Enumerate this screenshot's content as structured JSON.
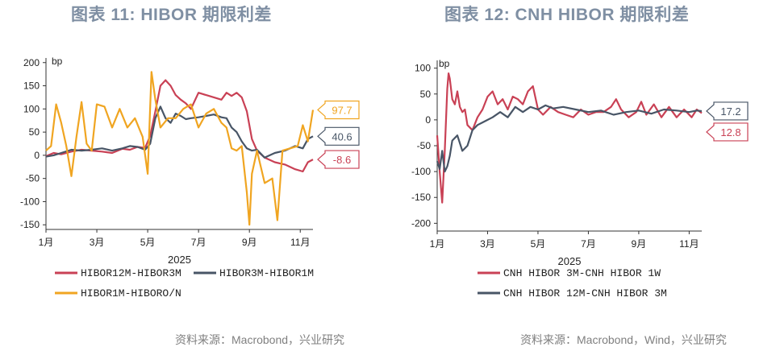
{
  "charts": [
    {
      "title": "图表 11: HIBOR 期限利差",
      "source": "资料来源：Macrobond，兴业研究",
      "unit": "bp",
      "xlabel": "2025",
      "x_ticks": [
        "1月",
        "3月",
        "5月",
        "7月",
        "9月",
        "11月"
      ],
      "y_ticks": [
        "200",
        "150",
        "100",
        "50",
        "0",
        "-50",
        "-100",
        "-150"
      ],
      "legend": [
        "HIBOR12M-HIBOR3M",
        "HIBOR3M-HIBOR1M",
        "HIBOR1M-HIBORO/N"
      ],
      "end_labels": [
        "97.7",
        "40.6",
        "-8.6"
      ]
    },
    {
      "title": "图表 12: CNH HIBOR 期限利差",
      "source": "资料来源：Macrobond，Wind，兴业研究",
      "unit": "bp",
      "xlabel": "2025",
      "x_ticks": [
        "1月",
        "3月",
        "5月",
        "7月",
        "9月",
        "11月"
      ],
      "y_ticks": [
        "100",
        "50",
        "0",
        "-50",
        "-100",
        "-150",
        "-200"
      ],
      "legend": [
        "CNH HIBOR 3M-CNH HIBOR 1W",
        "CNH HIBOR 12M-CNH HIBOR 3M"
      ],
      "end_labels": [
        "17.2",
        "12.8"
      ]
    }
  ],
  "chart_data": [
    {
      "type": "line",
      "title": "图表 11: HIBOR 期限利差",
      "ylabel": "bp",
      "xlabel": "2025",
      "xlim": [
        1,
        11.5
      ],
      "ylim": [
        -160,
        210
      ],
      "x_tick_values": [
        1,
        3,
        5,
        7,
        9,
        11
      ],
      "y_tick_values": [
        200,
        150,
        100,
        50,
        0,
        -50,
        -100,
        -150
      ],
      "series": [
        {
          "name": "HIBOR12M-HIBOR3M",
          "color": "#c94155",
          "end_label": "-8.6",
          "x": [
            1.0,
            1.3,
            1.6,
            2.0,
            2.4,
            2.8,
            3.2,
            3.6,
            4.0,
            4.3,
            4.6,
            4.9,
            5.1,
            5.3,
            5.5,
            5.7,
            5.9,
            6.1,
            6.3,
            6.5,
            6.7,
            7.0,
            7.3,
            7.6,
            7.9,
            8.1,
            8.3,
            8.5,
            8.7,
            8.9,
            9.1,
            9.3,
            9.6,
            10.0,
            10.4,
            10.8,
            11.1,
            11.3,
            11.5
          ],
          "y": [
            -2,
            5,
            2,
            8,
            12,
            10,
            8,
            5,
            14,
            12,
            18,
            16,
            42,
            95,
            150,
            162,
            150,
            130,
            120,
            112,
            100,
            135,
            130,
            125,
            120,
            135,
            128,
            135,
            125,
            95,
            35,
            10,
            -5,
            -15,
            -20,
            -30,
            -35,
            -15,
            -9
          ]
        },
        {
          "name": "HIBOR3M-HIBOR1M",
          "color": "#485566",
          "end_label": "40.6",
          "x": [
            1.0,
            1.3,
            1.6,
            2.0,
            2.4,
            2.8,
            3.2,
            3.6,
            4.0,
            4.3,
            4.6,
            4.9,
            5.1,
            5.3,
            5.5,
            5.7,
            5.9,
            6.1,
            6.3,
            6.5,
            6.7,
            7.0,
            7.3,
            7.6,
            7.9,
            8.1,
            8.3,
            8.5,
            8.7,
            8.9,
            9.1,
            9.3,
            9.6,
            10.0,
            10.4,
            10.8,
            11.1,
            11.3,
            11.5
          ],
          "y": [
            -3,
            0,
            5,
            12,
            10,
            12,
            15,
            10,
            15,
            20,
            18,
            12,
            25,
            80,
            105,
            80,
            70,
            90,
            85,
            78,
            80,
            82,
            85,
            88,
            82,
            80,
            60,
            50,
            30,
            15,
            10,
            12,
            -5,
            5,
            10,
            20,
            15,
            35,
            41
          ]
        },
        {
          "name": "HIBOR1M-HIBORO/N",
          "color": "#f0a521",
          "end_label": "97.7",
          "x": [
            1.0,
            1.2,
            1.4,
            1.6,
            1.8,
            2.0,
            2.2,
            2.4,
            2.6,
            2.8,
            3.0,
            3.3,
            3.6,
            3.9,
            4.2,
            4.5,
            4.8,
            5.0,
            5.15,
            5.3,
            5.5,
            5.8,
            6.1,
            6.4,
            6.7,
            7.0,
            7.3,
            7.6,
            7.9,
            8.1,
            8.3,
            8.5,
            8.7,
            8.9,
            9.0,
            9.1,
            9.3,
            9.6,
            9.9,
            10.1,
            10.3,
            10.6,
            10.9,
            11.1,
            11.3,
            11.5
          ],
          "y": [
            10,
            20,
            110,
            70,
            20,
            -45,
            40,
            115,
            25,
            10,
            110,
            105,
            60,
            100,
            60,
            80,
            40,
            -40,
            180,
            120,
            60,
            80,
            80,
            100,
            110,
            60,
            90,
            100,
            70,
            60,
            15,
            10,
            20,
            -80,
            -150,
            -40,
            10,
            -60,
            -50,
            -140,
            10,
            15,
            20,
            65,
            30,
            98
          ]
        }
      ]
    },
    {
      "type": "line",
      "title": "图表 12: CNH HIBOR 期限利差",
      "ylabel": "bp",
      "xlabel": "2025",
      "xlim": [
        1,
        11.5
      ],
      "ylim": [
        -215,
        115
      ],
      "x_tick_values": [
        1,
        3,
        5,
        7,
        9,
        11
      ],
      "y_tick_values": [
        100,
        50,
        0,
        -50,
        -100,
        -150,
        -200
      ],
      "series": [
        {
          "name": "CNH HIBOR 3M-CNH HIBOR 1W",
          "color": "#c94155",
          "end_label": "12.8",
          "x": [
            1.0,
            1.1,
            1.2,
            1.3,
            1.4,
            1.45,
            1.5,
            1.6,
            1.7,
            1.8,
            1.9,
            2.0,
            2.1,
            2.2,
            2.4,
            2.6,
            2.8,
            3.0,
            3.2,
            3.4,
            3.6,
            3.8,
            4.0,
            4.2,
            4.4,
            4.6,
            4.8,
            5.0,
            5.2,
            5.5,
            5.8,
            6.1,
            6.4,
            6.7,
            7.0,
            7.3,
            7.6,
            7.9,
            8.1,
            8.3,
            8.6,
            8.9,
            9.1,
            9.3,
            9.6,
            9.9,
            10.2,
            10.5,
            10.8,
            11.1,
            11.3,
            11.5
          ],
          "y": [
            -30,
            -100,
            -160,
            -60,
            60,
            90,
            80,
            40,
            30,
            55,
            25,
            15,
            20,
            -10,
            -20,
            5,
            20,
            45,
            55,
            30,
            40,
            20,
            45,
            40,
            30,
            55,
            65,
            20,
            10,
            25,
            15,
            10,
            5,
            20,
            10,
            15,
            15,
            25,
            40,
            20,
            5,
            15,
            35,
            10,
            30,
            5,
            25,
            5,
            20,
            5,
            20,
            13
          ]
        },
        {
          "name": "CNH HIBOR 12M-CNH HIBOR 3M",
          "color": "#485566",
          "end_label": "17.2",
          "x": [
            1.0,
            1.1,
            1.2,
            1.3,
            1.4,
            1.5,
            1.6,
            1.8,
            2.0,
            2.2,
            2.4,
            2.6,
            2.8,
            3.0,
            3.2,
            3.5,
            3.8,
            4.1,
            4.4,
            4.7,
            5.0,
            5.3,
            5.6,
            6.0,
            6.5,
            7.0,
            7.5,
            8.0,
            8.5,
            9.0,
            9.5,
            10.0,
            10.5,
            11.0,
            11.3,
            11.5
          ],
          "y": [
            -80,
            -95,
            -60,
            -100,
            -90,
            -70,
            -40,
            -30,
            -60,
            -50,
            -20,
            -10,
            -5,
            0,
            5,
            15,
            5,
            25,
            15,
            25,
            20,
            28,
            22,
            25,
            20,
            15,
            18,
            10,
            15,
            18,
            12,
            20,
            18,
            15,
            18,
            17
          ]
        }
      ]
    }
  ]
}
